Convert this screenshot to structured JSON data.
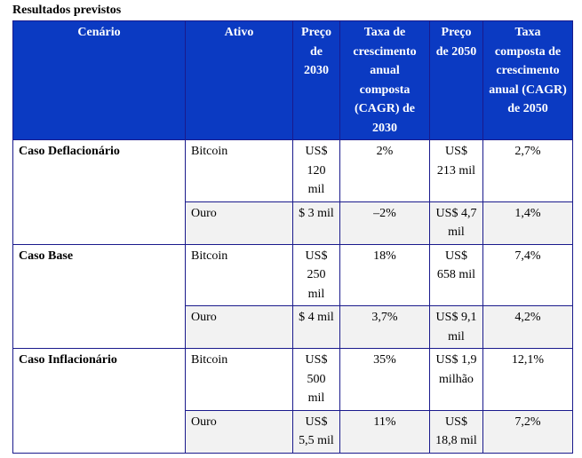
{
  "caption": "Resultados previstos",
  "headers": [
    "Cenário",
    "Ativo",
    "Preço de 2030",
    "Taxa de crescimento anual composta (CAGR) de 2030",
    "Preço de 2050",
    "Taxa composta de crescimento anual (CAGR) de 2050"
  ],
  "scenarios": [
    {
      "name": "Caso Deflacionário",
      "rows": [
        {
          "asset": "Bitcoin",
          "price2030": "US$ 120 mil",
          "cagr2030": "2%",
          "price2050": "US$ 213 mil",
          "cagr2050": "2,7%"
        },
        {
          "asset": "Ouro",
          "price2030": "$ 3 mil",
          "cagr2030": "–2%",
          "price2050": "US$ 4,7 mil",
          "cagr2050": "1,4%"
        }
      ]
    },
    {
      "name": "Caso Base",
      "rows": [
        {
          "asset": "Bitcoin",
          "price2030": "US$ 250 mil",
          "cagr2030": "18%",
          "price2050": "US$ 658 mil",
          "cagr2050": "7,4%"
        },
        {
          "asset": "Ouro",
          "price2030": "$ 4 mil",
          "cagr2030": "3,7%",
          "price2050": "US$ 9,1 mil",
          "cagr2050": "4,2%"
        }
      ]
    },
    {
      "name": "Caso Inflacionário",
      "rows": [
        {
          "asset": "Bitcoin",
          "price2030": "US$ 500 mil",
          "cagr2030": "35%",
          "price2050": "US$ 1,9 milhão",
          "cagr2050": "12,1%"
        },
        {
          "asset": "Ouro",
          "price2030": "US$ 5,5 mil",
          "cagr2030": "11%",
          "price2050": "US$ 18,8 mil",
          "cagr2050": "7,2%"
        }
      ]
    }
  ]
}
